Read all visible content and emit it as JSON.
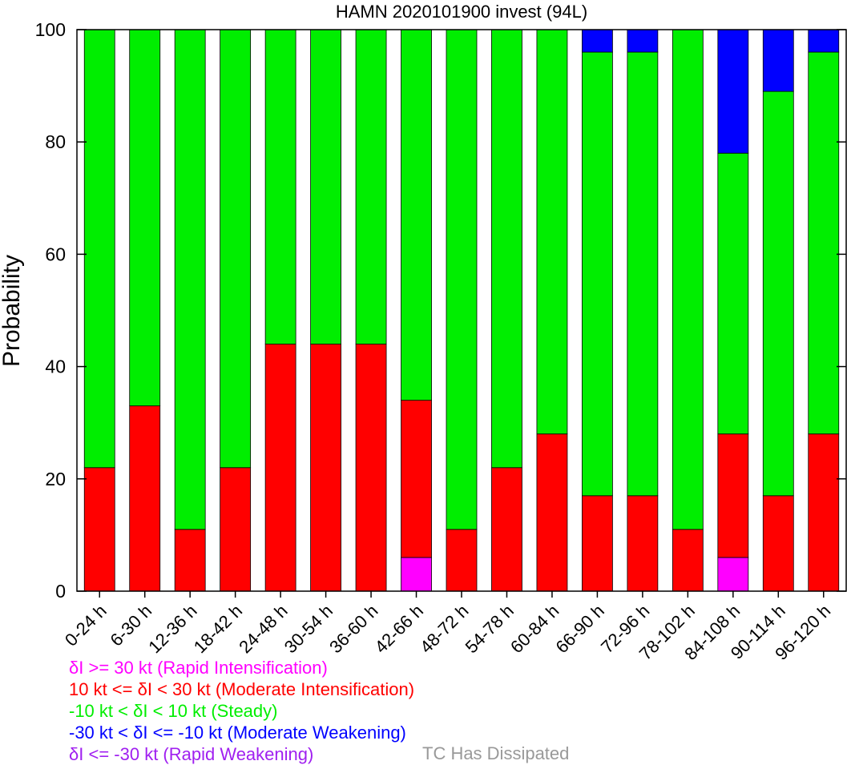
{
  "chart_data": {
    "type": "bar",
    "stacked": true,
    "title": "HAMN 2020101900 invest (94L)",
    "xlabel": "",
    "ylabel": "Probability",
    "ylim": [
      0,
      100
    ],
    "yticks": [
      0,
      20,
      40,
      60,
      80,
      100
    ],
    "grid": false,
    "legend_position": "bottom-left",
    "categories": [
      "0-24 h",
      "6-30 h",
      "12-36 h",
      "18-42 h",
      "24-48 h",
      "30-54 h",
      "36-60 h",
      "42-66 h",
      "48-72 h",
      "54-78 h",
      "60-84 h",
      "66-90 h",
      "72-96 h",
      "78-102 h",
      "84-108 h",
      "90-114 h",
      "96-120 h"
    ],
    "series": [
      {
        "name": "δI >= 30 kt (Rapid Intensification)",
        "color": "#ff00ff",
        "values": [
          0,
          0,
          0,
          0,
          0,
          0,
          0,
          6,
          0,
          0,
          0,
          0,
          0,
          0,
          6,
          0,
          0
        ]
      },
      {
        "name": "10 kt <= δI < 30 kt (Moderate Intensification)",
        "color": "#ff0000",
        "values": [
          22,
          33,
          11,
          22,
          44,
          44,
          44,
          28,
          11,
          22,
          28,
          17,
          17,
          11,
          22,
          17,
          28
        ]
      },
      {
        "name": "-10 kt < δI < 10 kt (Steady)",
        "color": "#00ee00",
        "values": [
          78,
          67,
          89,
          78,
          56,
          56,
          56,
          66,
          89,
          78,
          72,
          79,
          79,
          89,
          50,
          72,
          68
        ]
      },
      {
        "name": "-30 kt < δI <= -10 kt (Moderate Weakening)",
        "color": "#0000ff",
        "values": [
          0,
          0,
          0,
          0,
          0,
          0,
          0,
          0,
          0,
          0,
          0,
          4,
          4,
          0,
          22,
          11,
          4
        ]
      },
      {
        "name": "δI <= -30 kt (Rapid Weakening)",
        "color": "#a020f0",
        "values": [
          0,
          0,
          0,
          0,
          0,
          0,
          0,
          0,
          0,
          0,
          0,
          0,
          0,
          0,
          0,
          0,
          0
        ]
      }
    ],
    "dissipated": {
      "name": "TC Has Dissipated",
      "color": "#999999",
      "values": [
        0,
        0,
        0,
        0,
        0,
        0,
        0,
        0,
        0,
        0,
        0,
        0,
        0,
        0,
        0,
        0,
        0
      ]
    }
  }
}
